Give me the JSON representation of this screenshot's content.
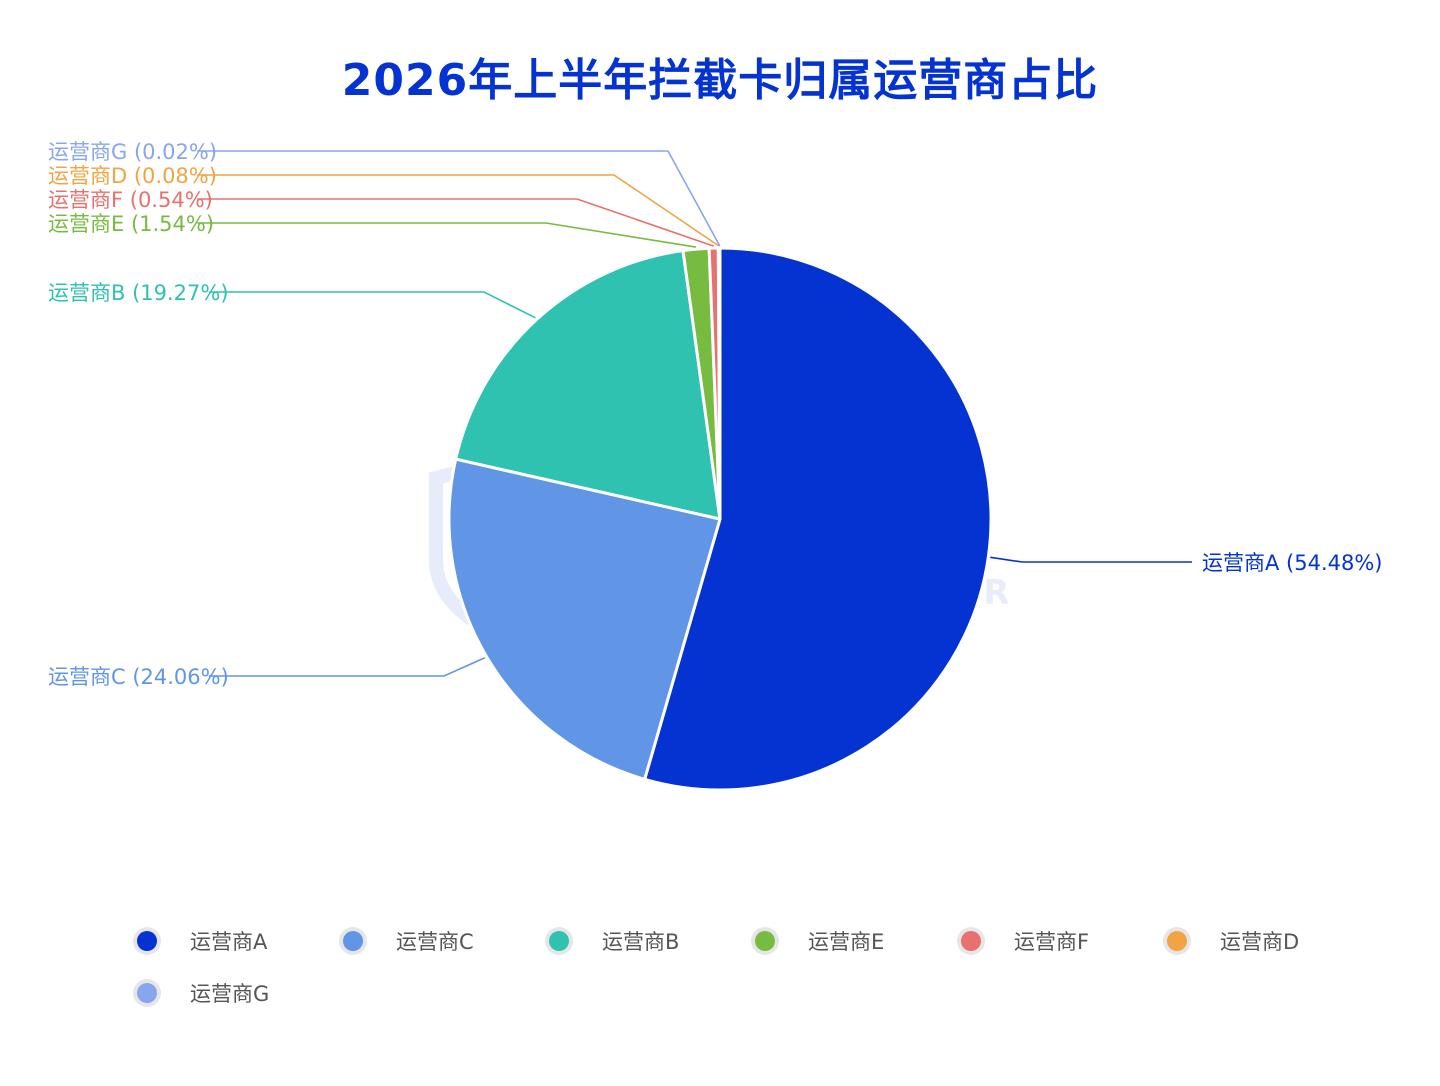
{
  "title": "2026年上半年拦截卡归属运营商占比",
  "watermark": {
    "main": "威胁猎人",
    "sub": "THREAT HUNTER"
  },
  "chart_data": {
    "type": "pie",
    "title": "2026年上半年拦截卡归属运营商占比",
    "slices": [
      {
        "name": "运营商A",
        "value": 54.48,
        "label": "运营商A (54.48%)",
        "color": "#0433d2"
      },
      {
        "name": "运营商C",
        "value": 24.06,
        "label": "运营商C (24.06%)",
        "color": "#6195e6"
      },
      {
        "name": "运营商B",
        "value": 19.27,
        "label": "运营商B (19.27%)",
        "color": "#2fc2b1"
      },
      {
        "name": "运营商E",
        "value": 1.54,
        "label": "运营商E (1.54%)",
        "color": "#77bb41"
      },
      {
        "name": "运营商F",
        "value": 0.54,
        "label": "运营商F (0.54%)",
        "color": "#e8706e"
      },
      {
        "name": "运营商D",
        "value": 0.08,
        "label": "运营商D (0.08%)",
        "color": "#f2a444"
      },
      {
        "name": "运营商G",
        "value": 0.02,
        "label": "运营商G (0.02%)",
        "color": "#88a6ec"
      }
    ],
    "legend_position": "bottom"
  }
}
